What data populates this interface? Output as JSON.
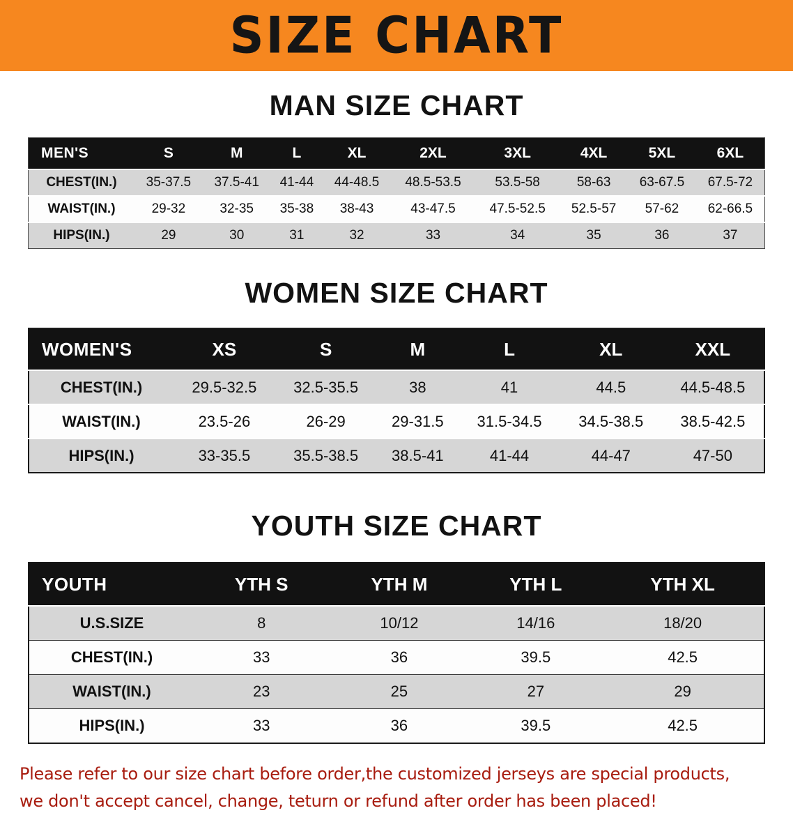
{
  "theme": {
    "banner_orange": "#f6871f",
    "header_black": "#121212",
    "row_gray": "#d6d6d6",
    "disclaimer_red": "#a81c0f"
  },
  "banner": {
    "title": "SIZE CHART"
  },
  "men": {
    "heading": "MAN SIZE CHART",
    "label": "MEN'S",
    "sizes": [
      "S",
      "M",
      "L",
      "XL",
      "2XL",
      "3XL",
      "4XL",
      "5XL",
      "6XL"
    ],
    "rows": [
      {
        "label": "CHEST(IN.)",
        "values": [
          "35-37.5",
          "37.5-41",
          "41-44",
          "44-48.5",
          "48.5-53.5",
          "53.5-58",
          "58-63",
          "63-67.5",
          "67.5-72"
        ]
      },
      {
        "label": "WAIST(IN.)",
        "values": [
          "29-32",
          "32-35",
          "35-38",
          "38-43",
          "43-47.5",
          "47.5-52.5",
          "52.5-57",
          "57-62",
          "62-66.5"
        ]
      },
      {
        "label": "HIPS(IN.)",
        "values": [
          "29",
          "30",
          "31",
          "32",
          "33",
          "34",
          "35",
          "36",
          "37"
        ]
      }
    ]
  },
  "women": {
    "heading": "WOMEN SIZE CHART",
    "label": "WOMEN'S",
    "sizes": [
      "XS",
      "S",
      "M",
      "L",
      "XL",
      "XXL"
    ],
    "rows": [
      {
        "label": "CHEST(IN.)",
        "values": [
          "29.5-32.5",
          "32.5-35.5",
          "38",
          "41",
          "44.5",
          "44.5-48.5"
        ]
      },
      {
        "label": "WAIST(IN.)",
        "values": [
          "23.5-26",
          "26-29",
          "29-31.5",
          "31.5-34.5",
          "34.5-38.5",
          "38.5-42.5"
        ]
      },
      {
        "label": "HIPS(IN.)",
        "values": [
          "33-35.5",
          "35.5-38.5",
          "38.5-41",
          "41-44",
          "44-47",
          "47-50"
        ]
      }
    ]
  },
  "youth": {
    "heading": "YOUTH SIZE CHART",
    "label": "YOUTH",
    "sizes": [
      "YTH S",
      "YTH M",
      "YTH L",
      "YTH XL"
    ],
    "rows": [
      {
        "label": "U.S.SIZE",
        "values": [
          "8",
          "10/12",
          "14/16",
          "18/20"
        ]
      },
      {
        "label": "CHEST(IN.)",
        "values": [
          "33",
          "36",
          "39.5",
          "42.5"
        ]
      },
      {
        "label": "WAIST(IN.)",
        "values": [
          "23",
          "25",
          "27",
          "29"
        ]
      },
      {
        "label": "HIPS(IN.)",
        "values": [
          "33",
          "36",
          "39.5",
          "42.5"
        ]
      }
    ]
  },
  "disclaimer": {
    "line1": "Please refer to our size chart before order,the customized jerseys are special products,",
    "line2": "we don't accept cancel, change, teturn or refund after order has been placed!"
  }
}
